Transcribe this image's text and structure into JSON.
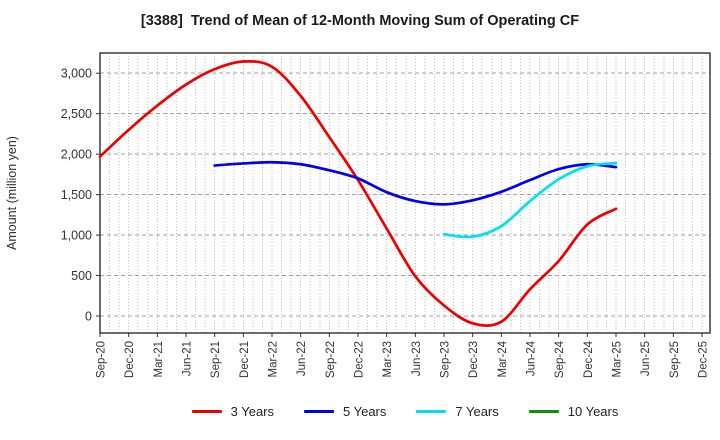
{
  "chart_data": {
    "type": "line",
    "title": "[3388]  Trend of Mean of 12-Month Moving Sum of Operating CF",
    "ylabel": "Amount (million yen)",
    "xlabel": "",
    "categories": [
      "Sep-20",
      "Dec-20",
      "Mar-21",
      "Jun-21",
      "Sep-21",
      "Dec-21",
      "Mar-22",
      "Jun-22",
      "Sep-22",
      "Dec-22",
      "Mar-23",
      "Jun-23",
      "Sep-23",
      "Dec-23",
      "Mar-24",
      "Jun-24",
      "Sep-24",
      "Dec-24",
      "Mar-25",
      "Jun-25",
      "Sep-25",
      "Dec-25"
    ],
    "yticks": {
      "values": [
        0,
        500,
        1000,
        1500,
        2000,
        2500,
        3000
      ],
      "labels": [
        "0",
        "500",
        "1,000",
        "1,500",
        "2,000",
        "2,500",
        "3,000"
      ]
    },
    "ylim": [
      -210,
      3250
    ],
    "grid": {
      "horizontal": "dashed",
      "vertical": "dotted-monthly"
    },
    "legend_position": "bottom",
    "series": [
      {
        "name": "3 Years",
        "color": "#ee0000",
        "start_index": 0,
        "values": [
          1970,
          2300,
          2600,
          2860,
          3050,
          3145,
          3080,
          2720,
          2210,
          1680,
          1080,
          490,
          130,
          -90,
          -70,
          330,
          680,
          1130,
          1325
        ]
      },
      {
        "name": "5 Years",
        "color": "#0000ee",
        "start_index": 4,
        "values": [
          1860,
          1885,
          1900,
          1875,
          1800,
          1700,
          1530,
          1420,
          1380,
          1430,
          1535,
          1680,
          1815,
          1875,
          1840
        ]
      },
      {
        "name": "7 Years",
        "color": "#00e0ee",
        "start_index": 12,
        "values": [
          1010,
          980,
          1110,
          1420,
          1690,
          1850,
          1890
        ]
      },
      {
        "name": "10 Years",
        "color": "#0a9000",
        "start_index": 0,
        "values": []
      }
    ]
  }
}
